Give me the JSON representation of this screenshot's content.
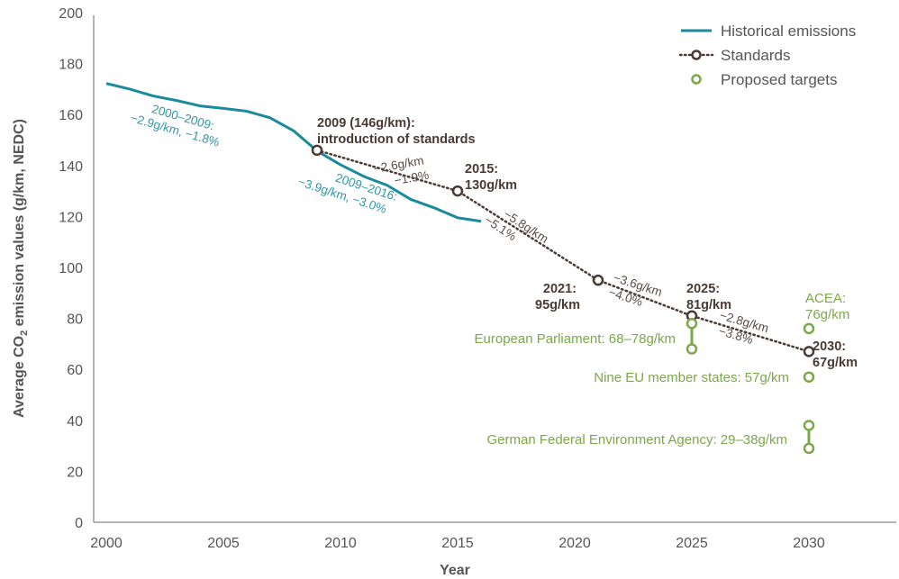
{
  "chart_data": {
    "type": "line",
    "title": "",
    "xlabel": "Year",
    "ylabel_parts": [
      "Average CO",
      "2",
      " emission values (g/km, NEDC)"
    ],
    "xlim": [
      2000,
      2033.5
    ],
    "ylim": [
      0,
      200
    ],
    "x_ticks": [
      2000,
      2005,
      2010,
      2015,
      2020,
      2025,
      2030
    ],
    "y_ticks": [
      0,
      20,
      40,
      60,
      80,
      100,
      120,
      140,
      160,
      180,
      200
    ],
    "grid": false,
    "legend_position": "top-right",
    "colors": {
      "historical": "#1a8a9c",
      "standards": "#4a3a33",
      "targets": "#7aa84a",
      "axis": "#9a9a9a",
      "text": "#555555"
    },
    "series": [
      {
        "key": "historical",
        "name": "Historical emissions",
        "x": [
          2000,
          2001,
          2002,
          2003,
          2004,
          2005,
          2006,
          2007,
          2008,
          2009,
          2010,
          2011,
          2012,
          2013,
          2014,
          2015,
          2016
        ],
        "y": [
          172.2,
          170.0,
          167.3,
          165.5,
          163.4,
          162.4,
          161.3,
          158.7,
          153.6,
          145.7,
          140.3,
          135.7,
          132.2,
          126.7,
          123.4,
          119.5,
          118.1
        ]
      },
      {
        "key": "standards",
        "name": "Standards",
        "x": [
          2009,
          2015,
          2021,
          2025,
          2030
        ],
        "y": [
          146,
          130,
          95,
          81,
          67
        ]
      },
      {
        "key": "targets",
        "name": "Proposed targets",
        "points": [
          {
            "x": 2025,
            "y": 78
          },
          {
            "x": 2025,
            "y": 68
          },
          {
            "x": 2030,
            "y": 76
          },
          {
            "x": 2030,
            "y": 57
          },
          {
            "x": 2030,
            "y": 38
          },
          {
            "x": 2030,
            "y": 29
          }
        ],
        "ranges": [
          {
            "x": 2025,
            "y0": 68,
            "y1": 78
          },
          {
            "x": 2030,
            "y0": 29,
            "y1": 38
          }
        ]
      }
    ],
    "annotations": {
      "hist_2000_2009": [
        "2000–2009:",
        "−2.9g/km, −1.8%"
      ],
      "hist_2009_2016": [
        "2009–2016:",
        "−3.9g/km, −3.0%"
      ],
      "std_2009": [
        "2009 (146g/km):",
        "introduction of standards"
      ],
      "std_2015": [
        "2015:",
        "130g/km"
      ],
      "std_2021": [
        "2021:",
        "95g/km"
      ],
      "std_2025": [
        "2025:",
        "81g/km"
      ],
      "std_2030": [
        "2030:",
        "67g/km"
      ],
      "rate_2009_2015": [
        "−2.6g/km",
        "−1.9%"
      ],
      "rate_2015_2021": [
        "−5.8g/km",
        "−5.1%"
      ],
      "rate_2021_2025": [
        "−3.6g/km",
        "−4.0%"
      ],
      "rate_2025_2030": [
        "−2.8g/km",
        "−3.8%"
      ],
      "target_acea": [
        "ACEA:",
        "76g/km"
      ],
      "target_ep": "European Parliament: 68–78g/km",
      "target_nine": "Nine EU member states: 57g/km",
      "target_german": "German Federal Environment Agency: 29–38g/km"
    }
  }
}
